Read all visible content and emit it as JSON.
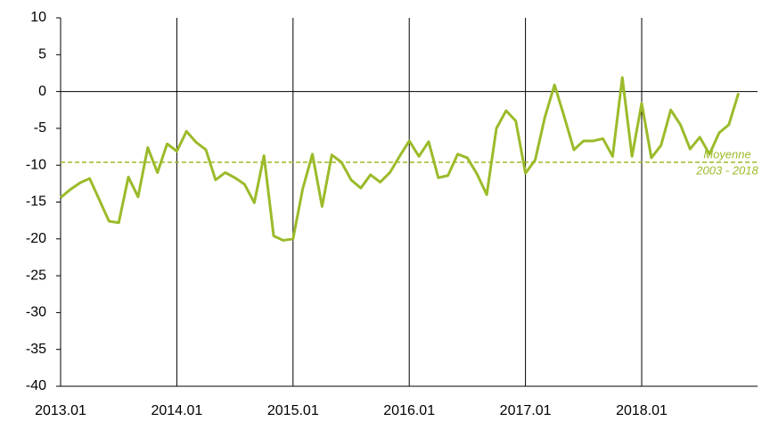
{
  "chart_data": {
    "type": "line",
    "categories": [
      "2013.01",
      null,
      null,
      null,
      null,
      null,
      null,
      null,
      null,
      null,
      null,
      null,
      "2014.01",
      null,
      null,
      null,
      null,
      null,
      null,
      null,
      null,
      null,
      null,
      null,
      "2015.01",
      null,
      null,
      null,
      null,
      null,
      null,
      null,
      null,
      null,
      null,
      null,
      "2016.01",
      null,
      null,
      null,
      null,
      null,
      null,
      null,
      null,
      null,
      null,
      null,
      "2017.01",
      null,
      null,
      null,
      null,
      null,
      null,
      null,
      null,
      null,
      null,
      null,
      "2018.01",
      null,
      null,
      null,
      null,
      null,
      null,
      null,
      null,
      null,
      null
    ],
    "series": [
      {
        "color": "#9bbb2a",
        "values": [
          -14.4,
          -13.3,
          -12.4,
          -11.8,
          -14.7,
          -17.6,
          -17.8,
          -11.6,
          -14.3,
          -7.6,
          -11.0,
          -7.1,
          -8.1,
          -5.4,
          -6.9,
          -7.9,
          -12.0,
          -11.0,
          -11.7,
          -12.6,
          -15.1,
          -8.7,
          -19.6,
          -20.2,
          -20.0,
          -13.2,
          -8.5,
          -15.6,
          -8.6,
          -9.6,
          -12.0,
          -13.1,
          -11.3,
          -12.3,
          -11.0,
          -8.8,
          -6.7,
          -8.8,
          -6.8,
          -11.7,
          -11.4,
          -8.5,
          -9.0,
          -11.2,
          -14.0,
          -5.0,
          -2.6,
          -4.0,
          -11.1,
          -9.3,
          -3.5,
          0.9,
          -3.4,
          -7.9,
          -6.7,
          -6.7,
          -6.4,
          -8.8,
          1.9,
          -8.8,
          -1.6,
          -9.0,
          -7.3,
          -2.5,
          -4.5,
          -7.8,
          -6.2,
          -8.5,
          -5.6,
          -4.5,
          -0.2
        ]
      }
    ],
    "mean": {
      "value": -9.6,
      "label": [
        "Moyenne",
        "2003 - 2018"
      ],
      "color": "#9bbb2a"
    },
    "ylim": [
      -40,
      10
    ],
    "yticks": [
      -40,
      -35,
      -30,
      -25,
      -20,
      -15,
      -10,
      -5,
      0,
      5,
      10
    ],
    "grid": true
  }
}
